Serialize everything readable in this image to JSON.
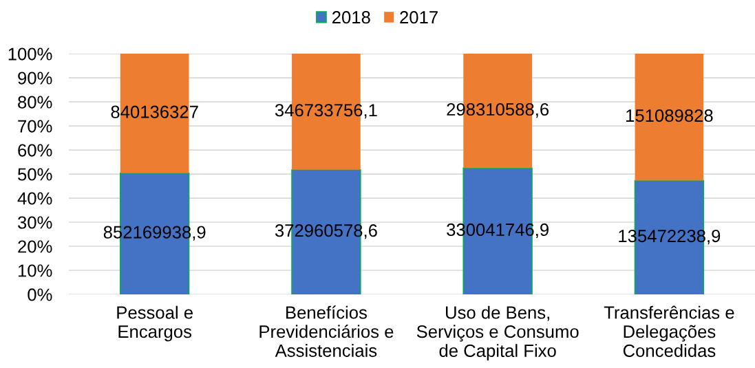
{
  "chart_data": {
    "type": "bar",
    "stacked": true,
    "categories": [
      "Pessoal e\nEncargos",
      "Benefícios\nPrevidenciários e\nAssistenciais",
      "Uso de Bens,\nServiços e Consumo\nde Capital Fixo",
      "Transferências e\nDelegações\nConcedidas"
    ],
    "series": [
      {
        "name": "2018",
        "color": "#4472c4",
        "values": [
          50.4,
          51.8,
          52.5,
          47.3
        ]
      },
      {
        "name": "2017",
        "color": "#ed7d31",
        "values": [
          49.6,
          48.2,
          47.5,
          52.7
        ]
      }
    ],
    "annotations": [
      "852169938,9",
      "372960578,6",
      "330041746,9",
      "135472238,9",
      "840136327",
      "346733756,1",
      "298310588,6",
      "151089828"
    ],
    "ylim": [
      0,
      100
    ],
    "yticks": [
      {
        "value": 0,
        "label": "0%"
      },
      {
        "value": 10,
        "label": "10%"
      },
      {
        "value": 20,
        "label": "20%"
      },
      {
        "value": 30,
        "label": "30%"
      },
      {
        "value": 40,
        "label": "40%"
      },
      {
        "value": 50,
        "label": "50%"
      },
      {
        "value": 60,
        "label": "60%"
      },
      {
        "value": 70,
        "label": "70%"
      },
      {
        "value": 80,
        "label": "80%"
      },
      {
        "value": 90,
        "label": "90%"
      },
      {
        "value": 100,
        "label": "100%"
      }
    ],
    "grid": "y",
    "legend": "top"
  }
}
